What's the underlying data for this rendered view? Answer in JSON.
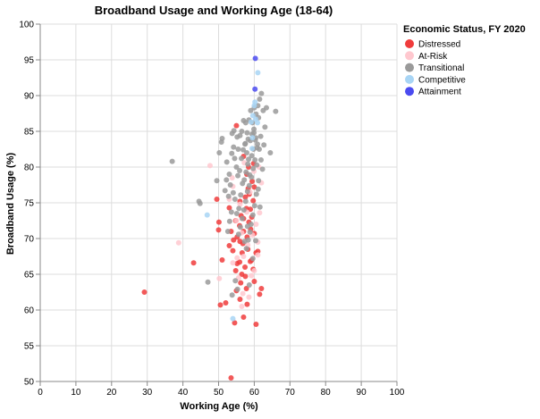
{
  "chart_data": {
    "type": "scatter",
    "title": "Broadband Usage and Working Age (18-64)",
    "xlabel": "Working Age (%)",
    "ylabel": "Broadband Usage (%)",
    "xlim": [
      0,
      100
    ],
    "ylim": [
      50,
      100
    ],
    "x_ticks": [
      "0",
      "10",
      "20",
      "30",
      "40",
      "50",
      "60",
      "70",
      "80",
      "90",
      "100"
    ],
    "y_ticks": [
      "50",
      "55",
      "60",
      "65",
      "70",
      "75",
      "80",
      "85",
      "90",
      "95",
      "100"
    ],
    "grid": true,
    "legend": {
      "title": "Economic Status, FY 2020",
      "position": "right",
      "entries": [
        {
          "name": "Distressed",
          "color": "#f03c3c"
        },
        {
          "name": "At-Risk",
          "color": "#ffc8cf"
        },
        {
          "name": "Transitional",
          "color": "#9a9a9a"
        },
        {
          "name": "Competitive",
          "color": "#a8d5f5"
        },
        {
          "name": "Attainment",
          "color": "#4b4bf0"
        }
      ]
    },
    "series": [
      {
        "name": "Distressed",
        "color": "#f03c3c",
        "points": [
          [
            29.2,
            62.5
          ],
          [
            43,
            66.6
          ],
          [
            50,
            71.2
          ],
          [
            51,
            67
          ],
          [
            50.5,
            60.7
          ],
          [
            52,
            61
          ],
          [
            53.5,
            50.5
          ],
          [
            54.5,
            58.2
          ],
          [
            55,
            62.7
          ],
          [
            56,
            61.5
          ],
          [
            57,
            59
          ],
          [
            58,
            60.8
          ],
          [
            60.5,
            58
          ],
          [
            61.5,
            62.2
          ],
          [
            62,
            63
          ],
          [
            57.5,
            64.7
          ],
          [
            56.5,
            65
          ],
          [
            55.2,
            66.5
          ],
          [
            57.4,
            66
          ],
          [
            56.6,
            68
          ],
          [
            58.2,
            68.5
          ],
          [
            59.3,
            67
          ],
          [
            60.5,
            68
          ],
          [
            61,
            68.2
          ],
          [
            55.2,
            70.2
          ],
          [
            56,
            69.6
          ],
          [
            57,
            71
          ],
          [
            58,
            70.2
          ],
          [
            59,
            71.3
          ],
          [
            60,
            70.7
          ],
          [
            54.8,
            72.5
          ],
          [
            55.9,
            71.8
          ],
          [
            57,
            72.8
          ],
          [
            58.5,
            72.3
          ],
          [
            59.3,
            73
          ],
          [
            57.8,
            74.2
          ],
          [
            58.9,
            74.1
          ],
          [
            56,
            75.2
          ],
          [
            57.5,
            75.8
          ],
          [
            58.6,
            76.2
          ],
          [
            59.7,
            75.3
          ],
          [
            58.3,
            77
          ],
          [
            59.4,
            78
          ],
          [
            60,
            77.2
          ],
          [
            57.9,
            79
          ],
          [
            58.4,
            80
          ],
          [
            59.8,
            80.5
          ],
          [
            55,
            85.8
          ],
          [
            57,
            81.5
          ],
          [
            56.3,
            73.2
          ],
          [
            53,
            74.3
          ],
          [
            49.5,
            75.5
          ],
          [
            50.1,
            72.3
          ],
          [
            53.5,
            71
          ],
          [
            54.2,
            69.8
          ],
          [
            54.8,
            65.5
          ],
          [
            56.2,
            63.8
          ],
          [
            57.8,
            63
          ],
          [
            55.9,
            66.7
          ],
          [
            58.9,
            66.8
          ],
          [
            59.7,
            65.7
          ],
          [
            60,
            64
          ],
          [
            53,
            69
          ],
          [
            54,
            68.3
          ],
          [
            56.8,
            69.3
          ]
        ]
      },
      {
        "name": "At-Risk",
        "color": "#ffc8cf",
        "points": [
          [
            38.8,
            69.4
          ],
          [
            47.6,
            80.2
          ],
          [
            50.2,
            64.4
          ],
          [
            53,
            75.5
          ],
          [
            54,
            66.6
          ],
          [
            55.2,
            67.3
          ],
          [
            56.5,
            60.5
          ],
          [
            58.5,
            61.8
          ],
          [
            59.2,
            64.8
          ],
          [
            60,
            65.5
          ],
          [
            61,
            69.5
          ],
          [
            62,
            77.8
          ],
          [
            61.5,
            73.6
          ],
          [
            60.5,
            72
          ],
          [
            59.5,
            70.5
          ],
          [
            58.2,
            69.1
          ],
          [
            57,
            67.5
          ],
          [
            56,
            74.8
          ],
          [
            55,
            72.5
          ],
          [
            54,
            77.3
          ],
          [
            53.8,
            78.5
          ],
          [
            57.2,
            80.6
          ],
          [
            59.9,
            79.4
          ],
          [
            61.3,
            80
          ],
          [
            58.8,
            76.5
          ],
          [
            56.5,
            70.8
          ],
          [
            55.6,
            64.5
          ],
          [
            57.9,
            73.7
          ],
          [
            61,
            67.7
          ],
          [
            56.8,
            62.3
          ]
        ]
      },
      {
        "name": "Transitional",
        "color": "#9a9a9a",
        "points": [
          [
            37,
            80.8
          ],
          [
            44.5,
            75.2
          ],
          [
            44.8,
            74.9
          ],
          [
            47,
            63.9
          ],
          [
            49.5,
            78.1
          ],
          [
            50.2,
            82
          ],
          [
            50.8,
            83.5
          ],
          [
            51,
            84
          ],
          [
            52.3,
            80.7
          ],
          [
            53,
            79
          ],
          [
            53.3,
            77.5
          ],
          [
            53.8,
            84.7
          ],
          [
            54.3,
            85.1
          ],
          [
            54.5,
            81.2
          ],
          [
            55,
            80
          ],
          [
            55.5,
            82.5
          ],
          [
            56,
            84.4
          ],
          [
            56.5,
            85
          ],
          [
            57,
            86.5
          ],
          [
            57.5,
            83.3
          ],
          [
            58,
            84.8
          ],
          [
            58.5,
            86.6
          ],
          [
            59,
            87.9
          ],
          [
            59.5,
            86.2
          ],
          [
            60,
            88.3
          ],
          [
            60.5,
            87.4
          ],
          [
            61,
            88.6
          ],
          [
            61.5,
            89.5
          ],
          [
            62,
            90.3
          ],
          [
            62.5,
            87.9
          ],
          [
            63,
            85.6
          ],
          [
            64.5,
            82
          ],
          [
            66,
            87.8
          ],
          [
            61.8,
            84.3
          ],
          [
            60.8,
            82.7
          ],
          [
            60.2,
            81
          ],
          [
            59.7,
            79.8
          ],
          [
            59.2,
            78.6
          ],
          [
            58.6,
            77.4
          ],
          [
            58.1,
            76.6
          ],
          [
            57.6,
            75.2
          ],
          [
            57.1,
            74
          ],
          [
            56.6,
            72.8
          ],
          [
            56.1,
            71.6
          ],
          [
            55.6,
            70.6
          ],
          [
            55.1,
            73.5
          ],
          [
            54.6,
            75.5
          ],
          [
            54.1,
            76.4
          ],
          [
            53.6,
            73.7
          ],
          [
            53.1,
            72.4
          ],
          [
            52.6,
            71
          ],
          [
            55.4,
            78.8
          ],
          [
            55.9,
            79.5
          ],
          [
            56.4,
            81.2
          ],
          [
            56.9,
            82.4
          ],
          [
            57.4,
            83.2
          ],
          [
            57.9,
            82
          ],
          [
            58.4,
            81.1
          ],
          [
            58.9,
            83.7
          ],
          [
            59.4,
            84.6
          ],
          [
            59.9,
            85.3
          ],
          [
            60.4,
            84.1
          ],
          [
            60.9,
            83.2
          ],
          [
            61.4,
            82.5
          ],
          [
            61.9,
            81
          ],
          [
            62.3,
            79.7
          ],
          [
            61.2,
            78.1
          ],
          [
            60.6,
            76.2
          ],
          [
            60.1,
            74.6
          ],
          [
            59.6,
            73.3
          ],
          [
            59.1,
            72
          ],
          [
            58.8,
            70.9
          ],
          [
            58.3,
            69.8
          ],
          [
            57.8,
            68.6
          ],
          [
            57.3,
            69.6
          ],
          [
            56.7,
            77.7
          ],
          [
            56.2,
            76.1
          ],
          [
            55.7,
            74.2
          ],
          [
            57.2,
            78.2
          ],
          [
            57.7,
            79.3
          ],
          [
            58.2,
            80.4
          ],
          [
            58.7,
            78.9
          ],
          [
            59.3,
            81.6
          ],
          [
            59.8,
            82.5
          ],
          [
            60.3,
            83.8
          ],
          [
            60.7,
            80.3
          ],
          [
            61.1,
            76.9
          ],
          [
            61.6,
            74.4
          ],
          [
            55.2,
            84.2
          ],
          [
            57.6,
            86.2
          ],
          [
            53.8,
            62.1
          ],
          [
            54.7,
            64.1
          ],
          [
            55.3,
            62.9
          ],
          [
            58.6,
            63.5
          ],
          [
            59.6,
            67.2
          ],
          [
            60.4,
            69.7
          ],
          [
            58.1,
            71.7
          ],
          [
            54.2,
            82.8
          ],
          [
            53.7,
            81.9
          ],
          [
            52.8,
            75.9
          ],
          [
            51.8,
            76.7
          ],
          [
            52.2,
            78.2
          ],
          [
            62.7,
            83.1
          ],
          [
            63.4,
            88.3
          ],
          [
            61.2,
            86.9
          ],
          [
            59.9,
            84.8
          ],
          [
            58.3,
            83.9
          ]
        ]
      },
      {
        "name": "Competitive",
        "color": "#a8d5f5",
        "points": [
          [
            46.8,
            73.3
          ],
          [
            54,
            58.8
          ],
          [
            59.1,
            86.3
          ],
          [
            59.6,
            87.2
          ],
          [
            60,
            88.6
          ],
          [
            60.4,
            86.7
          ],
          [
            60.9,
            86.2
          ],
          [
            59.4,
            82.6
          ],
          [
            61,
            93.2
          ],
          [
            60.2,
            89.1
          ],
          [
            59.5,
            84.1
          ]
        ]
      },
      {
        "name": "Attainment",
        "color": "#4b4bf0",
        "points": [
          [
            60.3,
            95.2
          ],
          [
            60.2,
            90.9
          ]
        ]
      }
    ]
  }
}
